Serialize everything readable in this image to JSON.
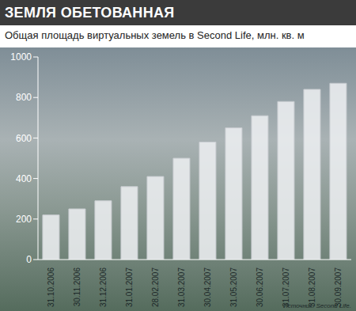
{
  "chart_data": {
    "type": "bar",
    "title": "ЗЕМЛЯ ОБЕТОВАННАЯ",
    "subtitle": "Общая площадь виртуальных земель в Second Life, млн.  кв. м",
    "source": "Источник: Second Life.",
    "categories": [
      "31.10.2006",
      "30.11.2006",
      "31.12.2006",
      "31.01.2007",
      "28.02.2007",
      "31.03.2007",
      "30.04.2007",
      "31.05.2007",
      "30.06.2007",
      "31.07.2007",
      "31.08.2007",
      "30.09.2007"
    ],
    "values": [
      220,
      250,
      290,
      360,
      410,
      500,
      580,
      650,
      710,
      780,
      840,
      870
    ],
    "color": "#eceef0",
    "ylim": [
      0,
      1000
    ],
    "yticks": [
      0,
      200,
      400,
      600,
      800,
      1000
    ],
    "grid": false
  }
}
